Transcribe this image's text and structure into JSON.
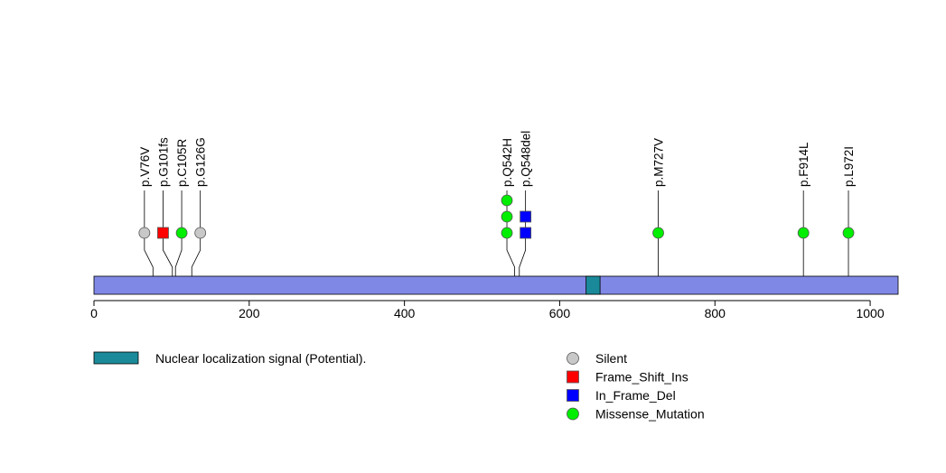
{
  "chart_data": {
    "type": "lollipop",
    "protein_length": 1036,
    "xlim": [
      0,
      1036
    ],
    "x_ticks": [
      {
        "value": 0,
        "label": "0"
      },
      {
        "value": 200,
        "label": "200"
      },
      {
        "value": 400,
        "label": "400"
      },
      {
        "value": 600,
        "label": "600"
      },
      {
        "value": 800,
        "label": "800"
      },
      {
        "value": 1000,
        "label": "1000"
      }
    ],
    "domains": [
      {
        "name": "Nuclear localization signal (Potential).",
        "start": 634,
        "end": 652,
        "color": "#1a8a9a"
      }
    ],
    "protein_color": "#8088e6",
    "mutations": [
      {
        "label": "p.V76V",
        "position": 76,
        "display_position": 65,
        "type": "Silent",
        "count": 1
      },
      {
        "label": "p.G101fs",
        "position": 101,
        "display_position": 89,
        "type": "Frame_Shift_Ins",
        "count": 1
      },
      {
        "label": "p.C105R",
        "position": 105,
        "display_position": 113,
        "type": "Missense_Mutation",
        "count": 1
      },
      {
        "label": "p.G126G",
        "position": 126,
        "display_position": 137,
        "type": "Silent",
        "count": 1
      },
      {
        "label": "p.Q542H",
        "position": 542,
        "display_position": 532,
        "type": "Missense_Mutation",
        "count": 3
      },
      {
        "label": "p.Q548del",
        "position": 548,
        "display_position": 556,
        "type": "In_Frame_Del",
        "count": 2
      },
      {
        "label": "p.M727V",
        "position": 727,
        "display_position": 727,
        "type": "Missense_Mutation",
        "count": 1
      },
      {
        "label": "p.F914L",
        "position": 914,
        "display_position": 914,
        "type": "Missense_Mutation",
        "count": 1
      },
      {
        "label": "p.L972I",
        "position": 972,
        "display_position": 972,
        "type": "Missense_Mutation",
        "count": 1
      }
    ],
    "legend": [
      {
        "type": "Silent",
        "label": "Silent",
        "shape": "circle",
        "color": "#c8c8c8"
      },
      {
        "type": "Frame_Shift_Ins",
        "label": "Frame_Shift_Ins",
        "shape": "square",
        "color": "#ff0000"
      },
      {
        "type": "In_Frame_Del",
        "label": "In_Frame_Del",
        "shape": "square",
        "color": "#0000ff"
      },
      {
        "type": "Missense_Mutation",
        "label": "Missense_Mutation",
        "shape": "circle",
        "color": "#00ee00"
      }
    ]
  }
}
